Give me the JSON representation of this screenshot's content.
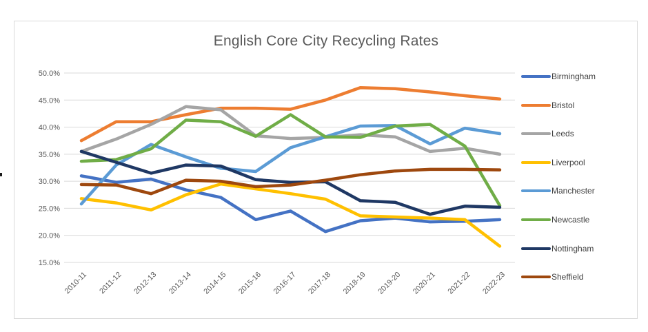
{
  "title": "English Core City Recycling Rates",
  "chart_data": {
    "type": "line",
    "categories": [
      "2010-11",
      "2011-12",
      "2012-13",
      "2013-14",
      "2014-15",
      "2015-16",
      "2016-17",
      "2017-18",
      "2018-19",
      "2019-20",
      "2020-21",
      "2021-22",
      "2022-23"
    ],
    "series": [
      {
        "name": "Birmingham",
        "color": "#4472C4",
        "values": [
          31.0,
          29.8,
          30.4,
          28.4,
          27.0,
          22.9,
          24.5,
          20.7,
          22.7,
          23.2,
          22.5,
          22.6,
          22.9
        ]
      },
      {
        "name": "Bristol",
        "color": "#ED7D31",
        "values": [
          37.5,
          41.0,
          41.0,
          42.3,
          43.5,
          43.5,
          43.3,
          45.0,
          47.3,
          47.1,
          46.5,
          45.8,
          45.2
        ]
      },
      {
        "name": "Leeds",
        "color": "#A5A5A5",
        "values": [
          35.5,
          37.8,
          40.5,
          43.8,
          43.2,
          38.4,
          37.9,
          38.1,
          38.6,
          38.2,
          35.5,
          36.1,
          35.0
        ]
      },
      {
        "name": "Liverpool",
        "color": "#FFC000",
        "values": [
          26.8,
          26.0,
          24.7,
          27.5,
          29.5,
          28.6,
          27.7,
          26.7,
          23.6,
          23.4,
          23.2,
          22.9,
          18.0
        ]
      },
      {
        "name": "Manchester",
        "color": "#5B9BD5",
        "values": [
          25.8,
          33.0,
          36.8,
          34.5,
          32.4,
          31.8,
          36.2,
          38.2,
          40.2,
          40.3,
          36.9,
          39.8,
          38.8
        ]
      },
      {
        "name": "Newcastle",
        "color": "#70AD47",
        "values": [
          33.7,
          34.0,
          36.0,
          41.3,
          41.0,
          38.3,
          42.3,
          38.2,
          38.1,
          40.2,
          40.5,
          36.5,
          25.5
        ]
      },
      {
        "name": "Nottingham",
        "color": "#1F3864",
        "values": [
          35.5,
          33.5,
          31.5,
          33.0,
          32.8,
          30.3,
          29.8,
          29.9,
          26.4,
          26.1,
          23.9,
          25.4,
          25.2
        ]
      },
      {
        "name": "Sheffield",
        "color": "#9E480E",
        "values": [
          29.4,
          29.3,
          27.7,
          30.2,
          30.0,
          29.0,
          29.3,
          30.2,
          31.2,
          31.9,
          32.2,
          32.2,
          32.1
        ]
      }
    ],
    "ytick_labels": [
      "50.0%",
      "45.0%",
      "40.0%",
      "35.0%",
      "30.0%",
      "25.0%",
      "20.0%",
      "15.0%"
    ],
    "ytick_values": [
      50,
      45,
      40,
      35,
      30,
      25,
      20,
      15
    ],
    "ylim": [
      15,
      50
    ],
    "grid": true,
    "legend_position": "right"
  }
}
